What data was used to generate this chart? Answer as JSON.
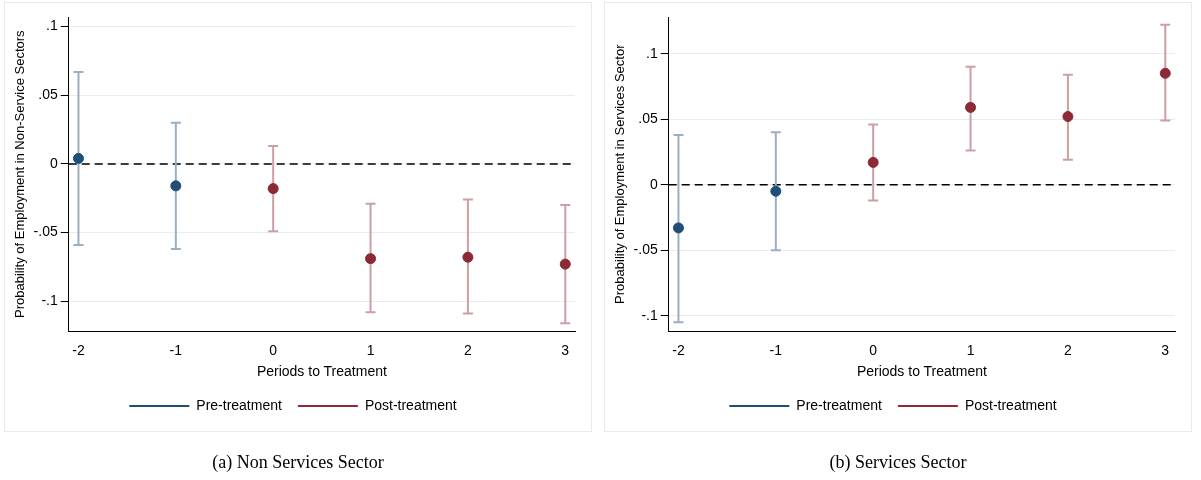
{
  "chart_data": [
    {
      "type": "scatter",
      "title": "(a) Non Services Sector",
      "xlabel": "Periods to Treatment",
      "ylabel": "Probability of Employment in Non-Service Sectors",
      "series": [
        {
          "name": "Pre-treatment",
          "color": "#1f4e79",
          "x": [
            -2,
            -1
          ],
          "values": [
            0.004,
            -0.016
          ],
          "errors": [
            [
              -0.059,
              0.067
            ],
            [
              -0.062,
              0.03
            ]
          ]
        },
        {
          "name": "Post-treatment",
          "color": "#8b2a35",
          "x": [
            0,
            1,
            2,
            3
          ],
          "values": [
            -0.018,
            -0.069,
            -0.068,
            -0.073
          ],
          "errors": [
            [
              -0.049,
              0.013
            ],
            [
              -0.108,
              -0.029
            ],
            [
              -0.109,
              -0.026
            ],
            [
              -0.116,
              -0.03
            ]
          ]
        }
      ],
      "xlim": [
        -2.1,
        3.1
      ],
      "xticks": [
        -2,
        -1,
        0,
        1,
        2,
        3
      ],
      "ylim": [
        -0.122,
        0.107
      ],
      "yticks": [
        {
          "value": -0.1,
          "label": "-.1"
        },
        {
          "value": -0.05,
          "label": "-.05"
        },
        0,
        {
          "value": 0.05,
          "label": ".05"
        },
        {
          "value": 0.1,
          "label": ".1"
        }
      ],
      "ref_lines": [
        {
          "axis": "y",
          "value": 0,
          "color": "#000000",
          "line_style": "dashed"
        }
      ],
      "grid": "y",
      "legend": "bottom",
      "marker": "circle"
    },
    {
      "type": "scatter",
      "title": "(b) Services Sector",
      "xlabel": "Periods to Treatment",
      "ylabel": "Probability of Employment in Services Sector",
      "series": [
        {
          "name": "Pre-treatment",
          "color": "#1f4e79",
          "x": [
            -2,
            -1
          ],
          "values": [
            -0.033,
            -0.005
          ],
          "errors": [
            [
              -0.105,
              0.038
            ],
            [
              -0.05,
              0.04
            ]
          ]
        },
        {
          "name": "Post-treatment",
          "color": "#8b2a35",
          "x": [
            0,
            1,
            2,
            3
          ],
          "values": [
            0.017,
            0.059,
            0.052,
            0.085
          ],
          "errors": [
            [
              -0.012,
              0.046
            ],
            [
              0.026,
              0.09
            ],
            [
              0.019,
              0.084
            ],
            [
              0.049,
              0.122
            ]
          ]
        }
      ],
      "xlim": [
        -2.1,
        3.1
      ],
      "xticks": [
        -2,
        -1,
        0,
        1,
        2,
        3
      ],
      "ylim": [
        -0.112,
        0.128
      ],
      "yticks": [
        {
          "value": -0.1,
          "label": "-.1"
        },
        {
          "value": -0.05,
          "label": "-.05"
        },
        0,
        {
          "value": 0.05,
          "label": ".05"
        },
        {
          "value": 0.1,
          "label": ".1"
        }
      ],
      "ref_lines": [
        {
          "axis": "y",
          "value": 0,
          "color": "#000000",
          "line_style": "dashed"
        }
      ],
      "grid": "y",
      "legend": "bottom",
      "marker": "circle"
    }
  ]
}
